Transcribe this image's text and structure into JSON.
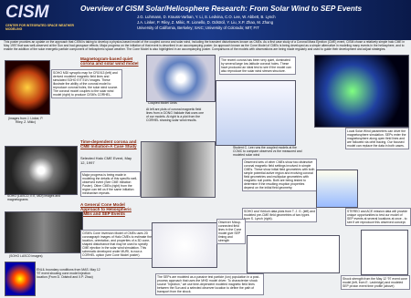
{
  "header": {
    "logo": "CISM",
    "logo_subtitle": "Center for Integrated Space Weather Modeling",
    "title": "Overview of CISM Solar/Heliosphere Research: From Solar Wind to SEP Events",
    "authors": [
      "J.G. Luhmann, D. Krauss-Varban, Y. Li, S. Ledvina, C.O. Lee, W. Abbett, B. Lynch",
      "J.A. Linker, P. Riley, Z. Mikic, R. Lionello, D. Odstrcil, Y. Liu, X.P. Zhao, M. Zhang",
      "University of California, Berkeley; SAIC; University of Colorado; MIT; FIT"
    ]
  },
  "intro": "This poster provides an update on the approach that CISM is taking to develop a physics-based model of the coupled corona and solar wind, including the transient disturbances known as CMEs. As a first case study of a Coronal Mass Ejection (CME) event, CISM chose a relatively simple halo CME in May 1997 that was well-observed at the Sun and had geospace effects. Major progress on the initiation of that event is described in an accompanying poster. An approach known as the Cone Model of CMEs is being developed as a simple alternative in modeling many events in the heliosphere, and to enable the addition of the solar energetic particle component of heliospheric space weather. The Cone Model is also highlighted in an accompanying poster. Comparisons of the models with observations are being made regularly and used to guide their development and adjust strategies.",
  "quiet": {
    "heading": "Magnetogram-based quiet corona and solar wind model",
    "text": "SOHO MDI synoptic map for CR1913 (left) and derived modeled magnetic field lines and simulated SOHO EIT EUV images. These illustrate the ability of the coronal model to reproduce coronal holes, the solar wind source. The coronal model couples to the solar wind model (right) to produce CISM's CORHEL.",
    "credit": "(Images from J. Linker, P. Riley, Z. Mikic)",
    "grid_label": "Coupled Model Grids",
    "grid_text": "At left are plots of coronal magnetic field lines from a GONG Validate that uses one of our models. At right is a plot from the CORHEL showing solar wind results.",
    "recent": "The recent corona has been very quiet, dominated by several large low latitude coronal holes. These have produced an ideal test to see if the model can also reproduce the solar wind stream structure.",
    "student": "Student C. Lee runs the coupled models at the CCMC to compare observed vs the measured and modeled solar wind",
    "local": "Local Solar Wind parameters can drive the magnetosphere simulation. SEPs enter the magnetosphere along open field lines and are followed via orbit tracing. Our focused model can replace the data in both cases."
  },
  "cme": {
    "heading": "Time-dependent corona and CME Initiation-A Case Study",
    "event": "Selected Halo CME Event, May 12, 1997",
    "soho": "SOHO (LASCO, EIT, MDI) images and magnetograms",
    "progress": "Major progress is being made in modeling the details of this specific well-observed event (See CME Initiation Poster). Other CMEs (right) from the region can tell us if the same initiation mechanism repeats.",
    "observed": "Observed sets of other CMEs show two distinctive coronal magnetic field settings involved in simple CMEs. These show initial field geometries with both simple potential active region and evolving coronal field geometries and multipolar geometries with magnetic null points. Both are being tested to determine if the resulting eruption properties depend on the initial field geometry.",
    "yohkoh": "SOHO and Yohkoh data plots from T. J. G. (left) and modeled pre-CME field geometries of two types from S. Lynch (right).",
    "stereo": "STEREO and ACE mission data will provide unique opportunities to test our model of SEP events at several locations at once - to see if we reproduce this observed concept."
  },
  "cone": {
    "heading": "A General Cone Model Approach to Heliospheric CMEs and SEP Events",
    "lasco": "(SOHO LASCO images)",
    "text": "CISM's Cone Inversion Model of CMEs uses 2D coronagraph images of Halo CMEs to estimate the location, orientation, and properties of a 3D cone-shaped disturbance that may be used to specify CME ejection in the solar wind simulation. This schematic developed under MURI, is now a CORHEL option (see Cone Model poster).",
    "enlil": "ENLIL boundary conditions from MAS. May 12 '97 event showing cone model injection location (From D. Odstrcil and X.P. Zhao)",
    "observer": "Observer Mixup-connected field lines in the Cone model give SEP timing and strength",
    "seps": "The SEPs are modeled as a passive test particle (ion) population in a post-process approach that uses the MHD model driver. To characterize shock source \"injection,\" we use time-dependent modeled magnetic field lines between the Sun and a selected observer location to define the path of transport from the shock.",
    "shock": "Shock strength from the May 12 '97 event cone model (left, from E. Lavbridge) and modeled SEP proton event time profile (above)"
  }
}
